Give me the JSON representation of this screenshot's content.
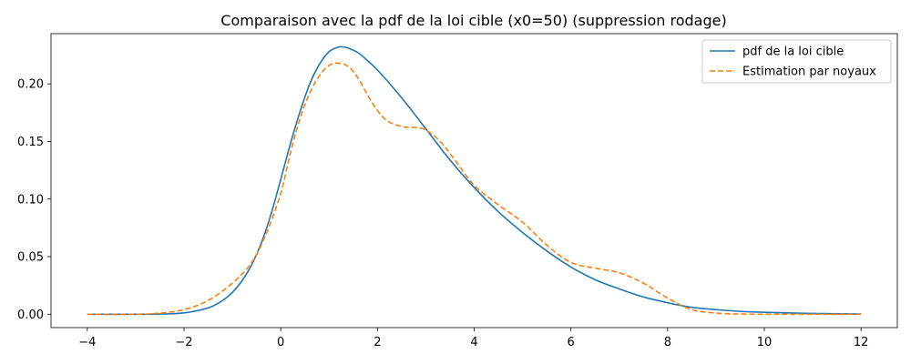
{
  "chart_data": {
    "type": "line",
    "title": "Comparaison avec la pdf de la loi cible (x0=50) (suppression rodage)",
    "xlabel": "",
    "ylabel": "",
    "xlim": [
      -4.75,
      12.75
    ],
    "ylim": [
      -0.0116,
      0.2436
    ],
    "xticks": [
      -4,
      -2,
      0,
      2,
      4,
      6,
      8,
      10,
      12
    ],
    "yticks": [
      0.0,
      0.05,
      0.1,
      0.15,
      0.2
    ],
    "xtick_labels": [
      "−4",
      "−2",
      "0",
      "2",
      "4",
      "6",
      "8",
      "10",
      "12"
    ],
    "ytick_labels": [
      "0.00",
      "0.05",
      "0.10",
      "0.15",
      "0.20"
    ],
    "grid": false,
    "legend_position": "top-right",
    "series": [
      {
        "name": "pdf de la loi cible",
        "color": "#1f77b4",
        "style": "solid",
        "x": [
          -4,
          -3,
          -2.5,
          -2,
          -1.5,
          -1.2,
          -1.0,
          -0.8,
          -0.6,
          -0.4,
          -0.2,
          0.0,
          0.2,
          0.4,
          0.6,
          0.8,
          1.0,
          1.2,
          1.3,
          1.4,
          1.6,
          1.8,
          2.0,
          2.4,
          2.8,
          3.0,
          3.5,
          4.0,
          4.5,
          5.0,
          5.5,
          6.0,
          6.5,
          7.0,
          7.5,
          8.0,
          8.5,
          9.0,
          9.5,
          10.0,
          11.0,
          12.0
        ],
        "y": [
          0.0,
          0.0,
          0.0002,
          0.0012,
          0.0055,
          0.012,
          0.019,
          0.029,
          0.043,
          0.062,
          0.087,
          0.117,
          0.148,
          0.176,
          0.2,
          0.217,
          0.228,
          0.232,
          0.232,
          0.231,
          0.227,
          0.22,
          0.212,
          0.193,
          0.172,
          0.161,
          0.134,
          0.11,
          0.089,
          0.071,
          0.055,
          0.041,
          0.03,
          0.022,
          0.015,
          0.01,
          0.006,
          0.004,
          0.0025,
          0.0017,
          0.0007,
          0.0002
        ]
      },
      {
        "name": "Estimation par noyaux",
        "color": "#ff7f0e",
        "style": "dashed",
        "x": [
          -4,
          -3,
          -2.5,
          -2,
          -1.5,
          -1.0,
          -0.6,
          -0.3,
          0.0,
          0.2,
          0.4,
          0.6,
          0.8,
          1.0,
          1.2,
          1.4,
          1.6,
          1.8,
          2.0,
          2.2,
          2.5,
          2.8,
          3.0,
          3.3,
          3.6,
          4.0,
          4.5,
          5.0,
          5.5,
          6.0,
          6.5,
          7.0,
          7.5,
          8.0,
          8.5,
          9.0,
          9.5,
          10.0,
          11.0,
          12.0
        ],
        "y": [
          0.0,
          0.0,
          0.001,
          0.004,
          0.012,
          0.027,
          0.045,
          0.07,
          0.105,
          0.14,
          0.17,
          0.192,
          0.207,
          0.216,
          0.218,
          0.215,
          0.205,
          0.19,
          0.177,
          0.168,
          0.163,
          0.162,
          0.16,
          0.15,
          0.134,
          0.112,
          0.095,
          0.08,
          0.06,
          0.045,
          0.04,
          0.036,
          0.027,
          0.014,
          0.004,
          0.001,
          0.0002,
          0.0,
          0.0,
          0.0
        ]
      }
    ]
  }
}
